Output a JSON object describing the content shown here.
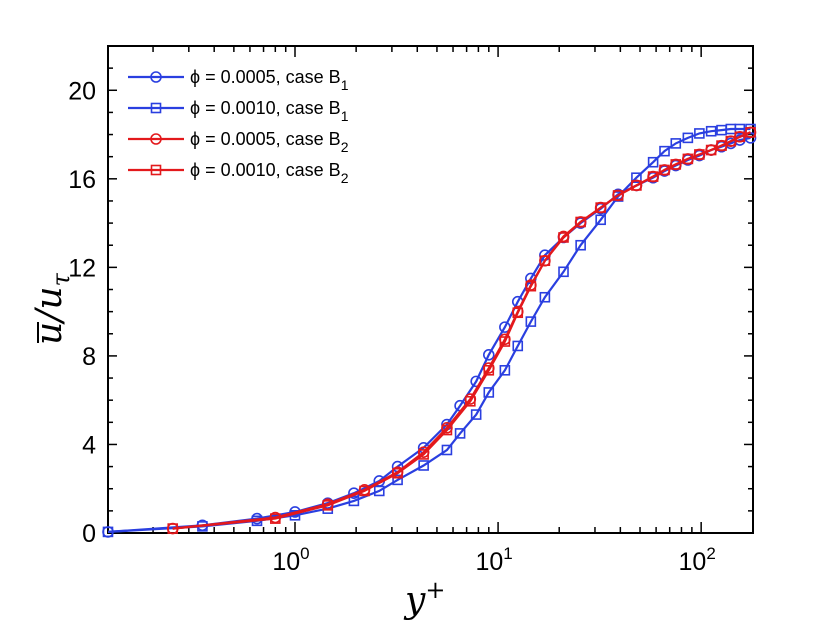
{
  "chart_data": {
    "type": "line",
    "title": "",
    "xlabel": "y",
    "xlabel_sup": "+",
    "ylabel": "u/u",
    "ylabel_sub": "τ",
    "xscale": "log",
    "xlim": [
      0.12,
      180
    ],
    "ylim": [
      0,
      22
    ],
    "x_ticks": [
      {
        "value": 1,
        "base": "10",
        "exp": "0"
      },
      {
        "value": 10,
        "base": "10",
        "exp": "1"
      },
      {
        "value": 100,
        "base": "10",
        "exp": "2"
      }
    ],
    "y_ticks": [
      0,
      4,
      8,
      12,
      16,
      20
    ],
    "legend_position": "top-left",
    "series": [
      {
        "name": "ϕ = 0.0005, case B",
        "name_sub": "1",
        "color": "#2a3fe0",
        "marker": "circle",
        "x": [
          0.12,
          0.35,
          0.65,
          1.0,
          1.45,
          1.95,
          2.6,
          3.2,
          4.3,
          5.6,
          6.5,
          7.8,
          9.0,
          10.8,
          12.5,
          14.5,
          17.0,
          21.0,
          25.5,
          32.0,
          39.0,
          48.0,
          58.0,
          66.0,
          75.0,
          86.0,
          98.0,
          112.0,
          126.0,
          140.0,
          155.0,
          175.0
        ],
        "y": [
          0.05,
          0.35,
          0.65,
          0.95,
          1.35,
          1.8,
          2.35,
          3.0,
          3.85,
          4.9,
          5.75,
          6.85,
          8.05,
          9.3,
          10.45,
          11.5,
          12.55,
          13.35,
          14.0,
          14.65,
          15.3,
          15.7,
          16.05,
          16.35,
          16.6,
          16.85,
          17.05,
          17.3,
          17.45,
          17.6,
          17.75,
          17.85
        ]
      },
      {
        "name": "ϕ = 0.0010, case B",
        "name_sub": "1",
        "color": "#2a3fe0",
        "marker": "square",
        "x": [
          0.12,
          0.35,
          0.65,
          1.0,
          1.45,
          1.95,
          2.6,
          3.2,
          4.3,
          5.6,
          6.5,
          7.8,
          9.0,
          10.8,
          12.5,
          14.5,
          17.0,
          21.0,
          25.5,
          32.0,
          39.0,
          48.0,
          58.0,
          66.0,
          75.0,
          86.0,
          98.0,
          112.0,
          126.0,
          140.0,
          155.0,
          175.0
        ],
        "y": [
          0.05,
          0.3,
          0.55,
          0.8,
          1.1,
          1.45,
          1.9,
          2.4,
          3.05,
          3.75,
          4.5,
          5.35,
          6.35,
          7.35,
          8.45,
          9.55,
          10.65,
          11.8,
          13.0,
          14.15,
          15.2,
          16.05,
          16.75,
          17.25,
          17.6,
          17.85,
          18.05,
          18.15,
          18.2,
          18.25,
          18.25,
          18.25
        ]
      },
      {
        "name": "ϕ = 0.0005, case B",
        "name_sub": "2",
        "color": "#e3191c",
        "marker": "circle",
        "x": [
          0.25,
          0.8,
          1.45,
          2.2,
          3.2,
          4.3,
          5.6,
          7.3,
          9.0,
          10.8,
          12.5,
          14.5,
          17.0,
          21.0,
          25.5,
          32.0,
          39.0,
          48.0,
          58.0,
          66.0,
          75.0,
          86.0,
          98.0,
          112.0,
          126.0,
          140.0,
          155.0,
          175.0
        ],
        "y": [
          0.2,
          0.7,
          1.3,
          1.95,
          2.75,
          3.65,
          4.75,
          6.05,
          7.45,
          8.75,
          10.0,
          11.2,
          12.3,
          13.4,
          14.05,
          14.7,
          15.25,
          15.7,
          16.1,
          16.4,
          16.65,
          16.9,
          17.1,
          17.3,
          17.5,
          17.7,
          17.9,
          18.1
        ]
      },
      {
        "name": "ϕ = 0.0010, case B",
        "name_sub": "2",
        "color": "#e3191c",
        "marker": "square",
        "x": [
          0.25,
          0.8,
          1.45,
          2.2,
          3.2,
          4.3,
          5.6,
          7.3,
          9.0,
          10.8,
          12.5,
          14.5,
          17.0,
          21.0,
          25.5,
          32.0,
          39.0,
          48.0,
          58.0,
          66.0,
          75.0,
          86.0,
          98.0,
          112.0,
          126.0,
          140.0,
          155.0,
          175.0
        ],
        "y": [
          0.2,
          0.65,
          1.25,
          1.9,
          2.7,
          3.55,
          4.65,
          5.95,
          7.35,
          8.65,
          9.95,
          11.15,
          12.3,
          13.35,
          14.05,
          14.7,
          15.25,
          15.7,
          16.1,
          16.4,
          16.65,
          16.9,
          17.1,
          17.3,
          17.5,
          17.7,
          17.9,
          18.1
        ]
      }
    ]
  }
}
